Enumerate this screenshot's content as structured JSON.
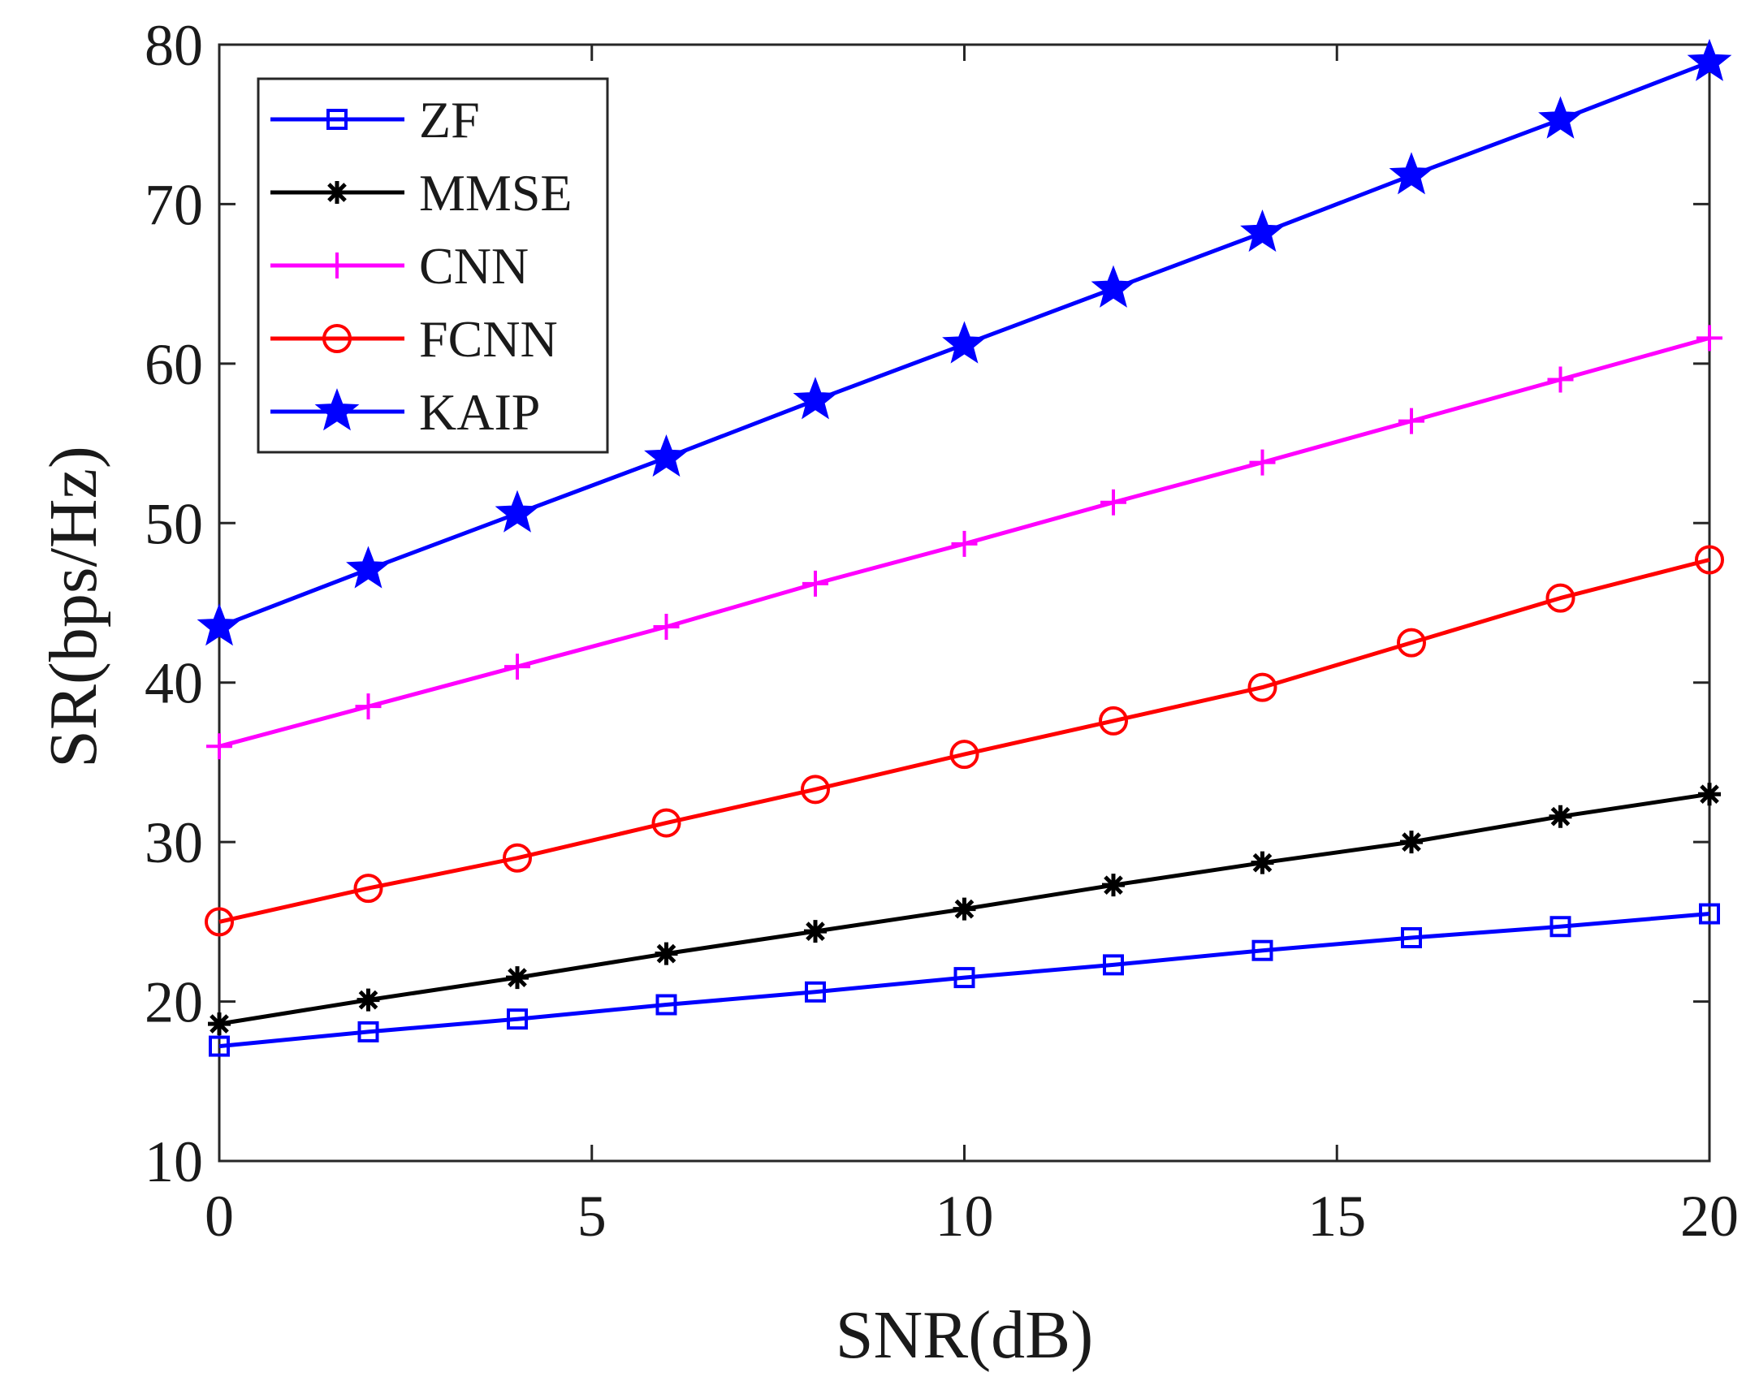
{
  "chart_data": {
    "type": "line",
    "title": "",
    "xlabel": "SNR(dB)",
    "ylabel": "SR(bps/Hz)",
    "xlim": [
      0,
      20
    ],
    "ylim": [
      10,
      80
    ],
    "xticks": [
      0,
      5,
      10,
      15,
      20
    ],
    "yticks": [
      10,
      20,
      30,
      40,
      50,
      60,
      70,
      80
    ],
    "xtick_labels": [
      "0",
      "5",
      "10",
      "15",
      "20"
    ],
    "ytick_labels": [
      "10",
      "20",
      "30",
      "40",
      "50",
      "60",
      "70",
      "80"
    ],
    "grid": false,
    "legend_position": "top-left",
    "x": [
      0,
      2,
      4,
      6,
      8,
      10,
      12,
      14,
      16,
      18,
      20
    ],
    "series": [
      {
        "name": "ZF",
        "color": "#0000ff",
        "marker": "square",
        "values": [
          17.2,
          18.1,
          18.9,
          19.8,
          20.6,
          21.5,
          22.3,
          23.2,
          24.0,
          24.7,
          25.5
        ]
      },
      {
        "name": "MMSE",
        "color": "#000000",
        "marker": "asterisk",
        "values": [
          18.6,
          20.1,
          21.5,
          23.0,
          24.4,
          25.8,
          27.3,
          28.7,
          30.0,
          31.6,
          33.0
        ]
      },
      {
        "name": "CNN",
        "color": "#ff00ff",
        "marker": "plus",
        "values": [
          36.0,
          38.5,
          41.0,
          43.5,
          46.2,
          48.7,
          51.3,
          53.8,
          56.4,
          59.0,
          61.6
        ]
      },
      {
        "name": "FCNN",
        "color": "#ff0000",
        "marker": "circle",
        "values": [
          25.0,
          27.1,
          29.0,
          31.2,
          33.3,
          35.5,
          37.6,
          39.7,
          42.5,
          45.3,
          47.7
        ]
      },
      {
        "name": "KAIP",
        "color": "#0000ff",
        "marker": "star",
        "values": [
          43.5,
          47.1,
          50.6,
          54.1,
          57.7,
          61.2,
          64.7,
          68.2,
          71.8,
          75.3,
          78.9
        ]
      }
    ]
  }
}
